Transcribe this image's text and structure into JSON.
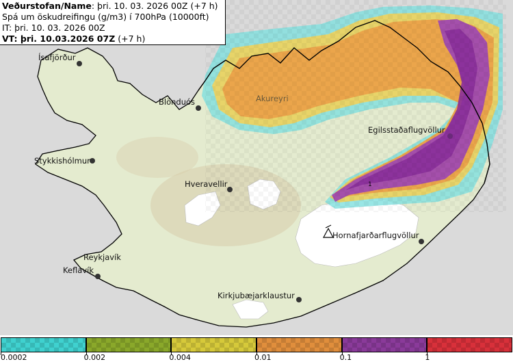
{
  "header": {
    "line1_bold": "Veðurstofan/Name",
    "line1_rest": ": þri. 10. 03. 2026 00Z (+7 h)",
    "line2": "Spá um öskudreifingu (g/m3) í 700hPa (10000ft)",
    "line3": "IT: þri. 10. 03. 2026 00Z",
    "line4_bold": "VT: þri. 10.03.2026 07Z",
    "line4_rest": " (+7 h)"
  },
  "places": [
    {
      "id": "isafjordur",
      "label": "Ísafjörður"
    },
    {
      "id": "blonduos",
      "label": "Blönduós"
    },
    {
      "id": "akureyri",
      "label": "Akureyri"
    },
    {
      "id": "egilsstadir",
      "label": "Egilsstaðaflugvöllur"
    },
    {
      "id": "stykkisholmur",
      "label": "Stykkishólmur"
    },
    {
      "id": "hveravellir",
      "label": "Hveravellir"
    },
    {
      "id": "hornafjordur",
      "label": "Hornafjarðarflugvöllur"
    },
    {
      "id": "reykjavik",
      "label": "Reykjavík"
    },
    {
      "id": "keflavik",
      "label": "Keflavík"
    },
    {
      "id": "kirkjubaer",
      "label": "Kirkjubæjarklaustur"
    }
  ],
  "contour_label": "1",
  "legend": {
    "ticks": [
      "0.0002",
      "0.002",
      "0.004",
      "0.01",
      "0.1",
      "1"
    ],
    "colors": [
      "#3fd1cf",
      "#8aa82a",
      "#d6c93a",
      "#e08e3c",
      "#8a3a9a",
      "#d8303a"
    ]
  }
}
